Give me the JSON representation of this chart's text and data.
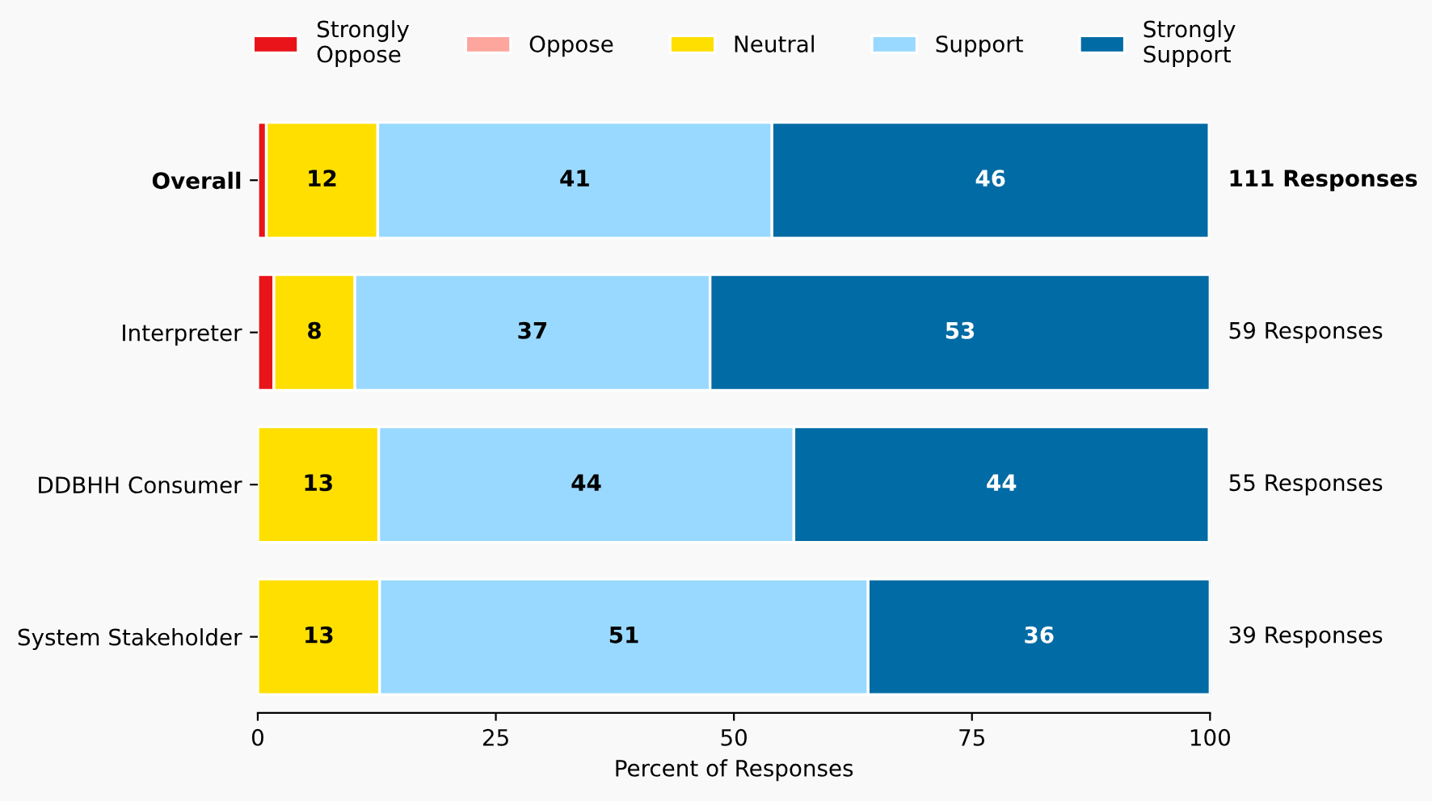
{
  "chart_data": {
    "type": "bar",
    "orientation": "horizontal",
    "stacked": true,
    "xlabel": "Percent of Responses",
    "categories": [
      "Overall",
      "Interpreter",
      "DDBHH Consumer",
      "System Stakeholder"
    ],
    "series": [
      {
        "name": "Strongly\nOppose",
        "color": "#e8141a",
        "values": [
          0.9,
          1.7,
          0,
          0
        ],
        "value_labels": [
          null,
          null,
          null,
          null
        ]
      },
      {
        "name": "Oppose",
        "color": "#fca69e",
        "values": [
          0,
          0,
          0,
          0
        ],
        "value_labels": [
          null,
          null,
          null,
          null
        ]
      },
      {
        "name": "Neutral",
        "color": "#ffdf00",
        "values": [
          11.7,
          8.5,
          12.7,
          12.8
        ],
        "value_labels": [
          "12",
          "8",
          "13",
          "13"
        ]
      },
      {
        "name": "Support",
        "color": "#99d9ff",
        "values": [
          41.4,
          37.3,
          43.6,
          51.3
        ],
        "value_labels": [
          "41",
          "37",
          "44",
          "51"
        ]
      },
      {
        "name": "Strongly\nSupport",
        "color": "#006ba4",
        "values": [
          45.9,
          52.5,
          43.6,
          35.9
        ],
        "value_labels": [
          "46",
          "53",
          "44",
          "36"
        ]
      }
    ],
    "xlim": [
      0,
      100
    ],
    "xticks": [
      0,
      25,
      50,
      75,
      100
    ],
    "annotations": [
      "111 Responses",
      "59 Responses",
      "55 Responses",
      "39 Responses"
    ],
    "grid": false,
    "legend": "top"
  }
}
